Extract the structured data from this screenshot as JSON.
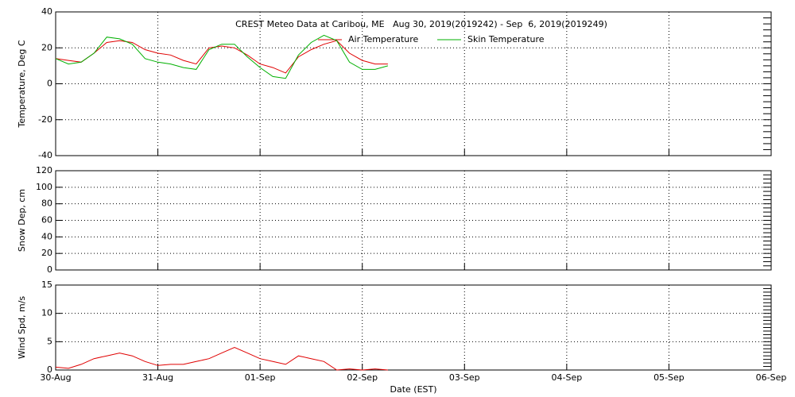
{
  "chart_data": [
    {
      "type": "line",
      "title": "CREST Meteo Data at Caribou, ME   Aug 30, 2019(2019242) - Sep  6, 2019(2019249)",
      "ylabel": "Temperature, Deg C",
      "x": [
        0,
        3,
        6,
        9,
        12,
        15,
        18,
        21,
        24,
        27,
        30,
        33,
        36,
        39,
        42,
        45,
        48,
        51,
        54,
        57,
        60,
        63,
        66,
        69,
        72,
        75,
        78
      ],
      "series": [
        {
          "name": "Air Temperature",
          "color": "#e00000",
          "values": [
            14,
            13,
            12,
            17,
            23,
            24,
            23,
            19,
            17,
            16,
            13,
            11,
            20,
            21,
            20,
            16,
            11,
            9,
            6,
            15,
            19,
            22,
            24,
            17,
            13,
            11,
            11
          ]
        },
        {
          "name": "Skin Temperature",
          "color": "#00b000",
          "values": [
            14,
            11,
            12,
            17,
            26,
            25,
            22,
            14,
            12,
            11,
            9,
            8,
            19,
            22,
            22,
            15,
            9,
            4,
            3,
            16,
            23,
            27,
            24,
            12,
            8,
            8,
            10
          ]
        }
      ],
      "xlim": [
        0,
        168
      ],
      "xticks": [
        0,
        24,
        48,
        72,
        96,
        120,
        144,
        168
      ],
      "ylim": [
        -40,
        40
      ],
      "yticks": [
        -40,
        -20,
        0,
        20,
        40
      ],
      "grid": true
    },
    {
      "type": "line",
      "ylabel": "Snow Dep, cm",
      "x": [],
      "series": [],
      "xlim": [
        0,
        168
      ],
      "xticks": [
        0,
        24,
        48,
        72,
        96,
        120,
        144,
        168
      ],
      "ylim": [
        0,
        120
      ],
      "yticks": [
        0,
        20,
        40,
        60,
        80,
        100,
        120
      ],
      "grid": true
    },
    {
      "type": "line",
      "ylabel": "Wind Spd, m/s",
      "xlabel": "Date (EST)",
      "x": [
        0,
        3,
        6,
        9,
        12,
        15,
        18,
        21,
        24,
        27,
        30,
        33,
        36,
        39,
        42,
        45,
        48,
        51,
        54,
        57,
        60,
        63,
        66,
        69,
        72,
        75,
        78
      ],
      "series": [
        {
          "color": "#e00000",
          "values": [
            0.5,
            0.3,
            1,
            2,
            2.5,
            3,
            2.5,
            1.5,
            0.8,
            1,
            1,
            1.5,
            2,
            3,
            4,
            3,
            2,
            1.5,
            1,
            2.5,
            2,
            1.5,
            0,
            0.2,
            0,
            0.2,
            0
          ]
        }
      ],
      "xlim": [
        0,
        168
      ],
      "xticks": [
        {
          "value": 0,
          "label": "30-Aug"
        },
        {
          "value": 24,
          "label": "31-Aug"
        },
        {
          "value": 48,
          "label": "01-Sep"
        },
        {
          "value": 72,
          "label": "02-Sep"
        },
        {
          "value": 96,
          "label": "03-Sep"
        },
        {
          "value": 120,
          "label": "04-Sep"
        },
        {
          "value": 144,
          "label": "05-Sep"
        },
        {
          "value": 168,
          "label": "06-Sep"
        }
      ],
      "ylim": [
        0,
        15
      ],
      "yticks": [
        0,
        5,
        10,
        15
      ],
      "grid": true
    }
  ]
}
